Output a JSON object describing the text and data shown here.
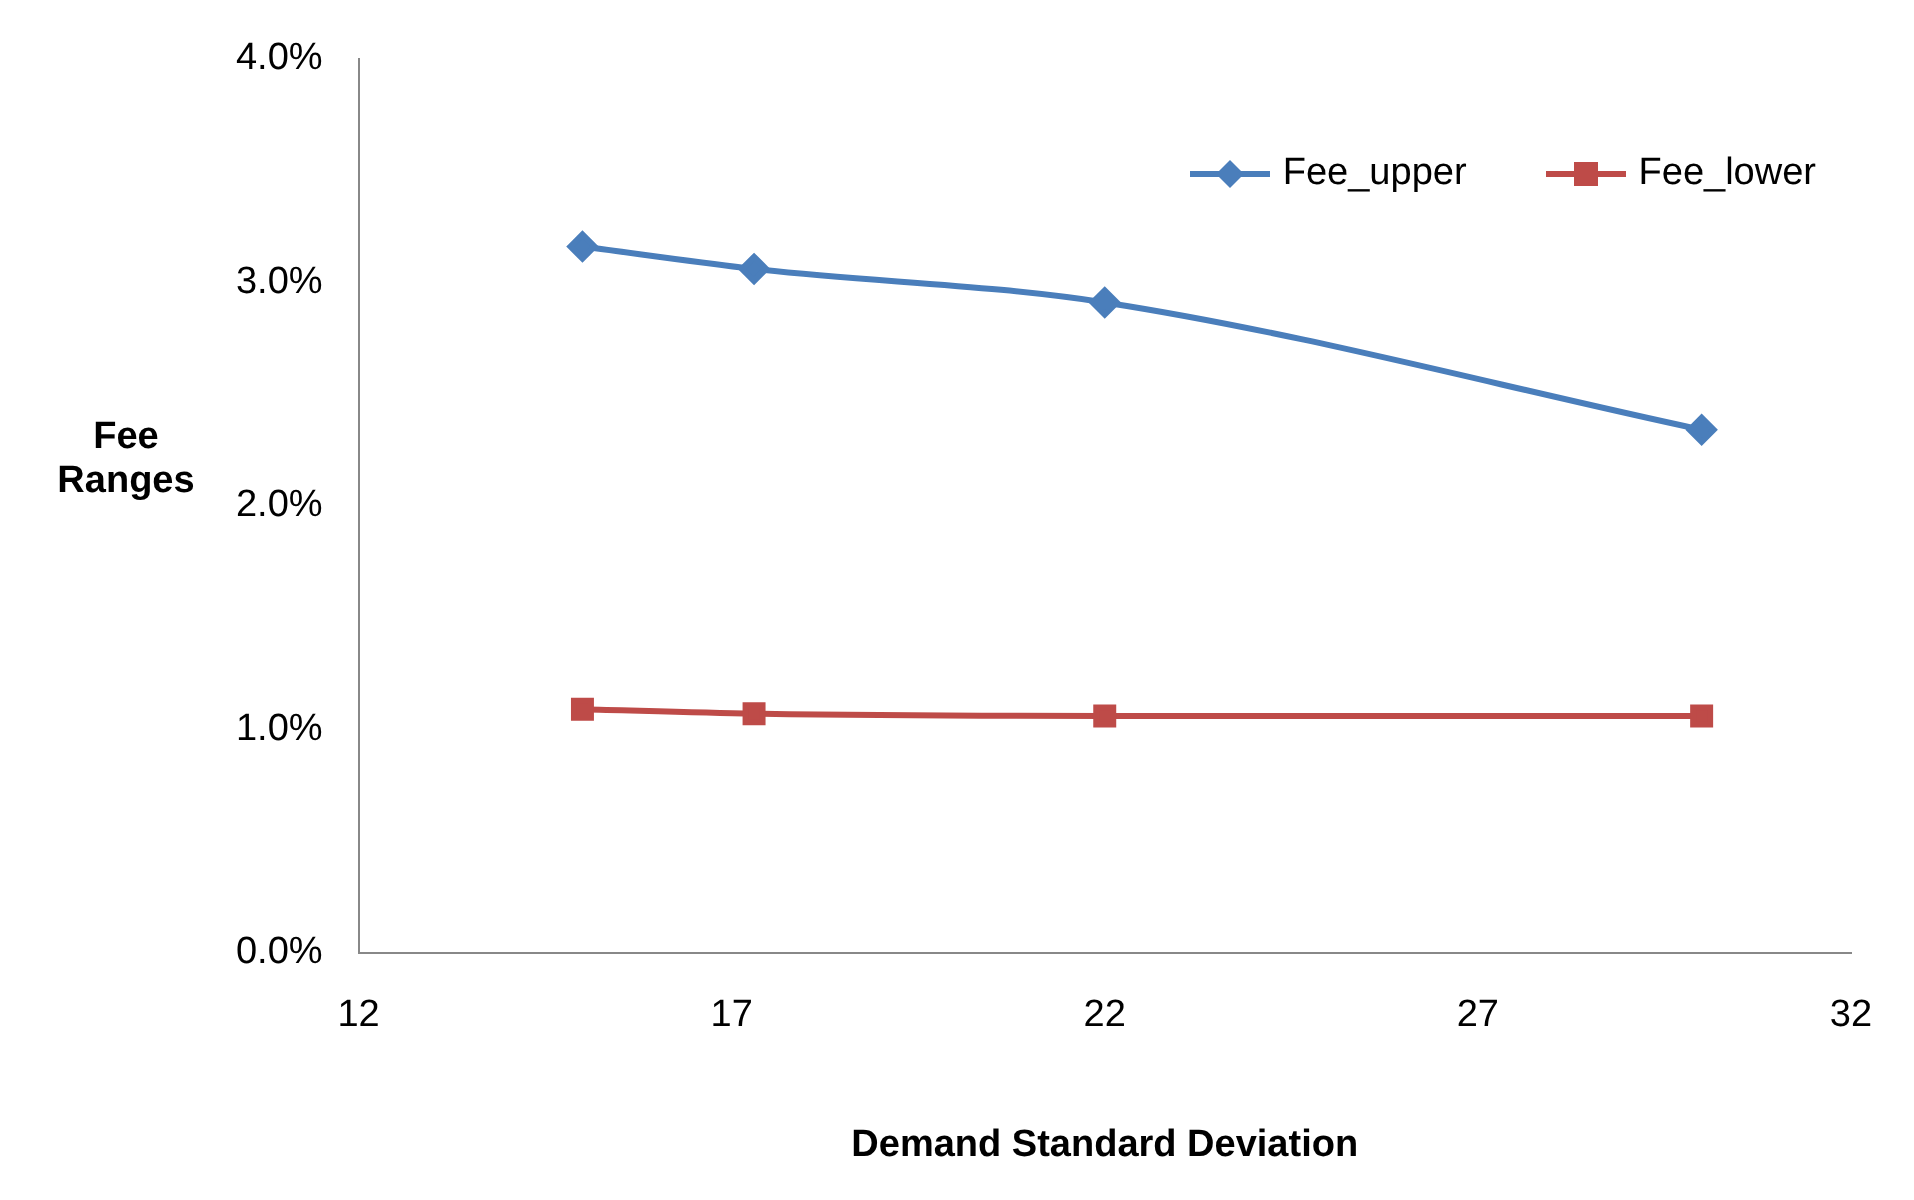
{
  "chart_data": {
    "type": "line",
    "xlabel": "Demand Standard Deviation",
    "ylabel": "Fee Ranges",
    "xlim": [
      12,
      32
    ],
    "xticks": [
      12,
      17,
      22,
      27,
      32
    ],
    "ylim": [
      0,
      0.04
    ],
    "yticks": [
      {
        "value": 0,
        "label": "0.0%"
      },
      {
        "value": 0.01,
        "label": "1.0%"
      },
      {
        "value": 0.02,
        "label": "2.0%"
      },
      {
        "value": 0.03,
        "label": "3.0%"
      },
      {
        "value": 0.04,
        "label": "4.0%"
      }
    ],
    "grid": false,
    "legend": "top right",
    "series": [
      {
        "name": "Fee_upper",
        "color": "#4a7ebb",
        "marker": "diamond",
        "x": [
          15,
          17.3,
          22,
          30
        ],
        "values": [
          0.0316,
          0.0306,
          0.0291,
          0.0234
        ]
      },
      {
        "name": "Fee_lower",
        "color": "#be4b48",
        "marker": "square",
        "x": [
          15,
          17.3,
          22,
          30
        ],
        "values": [
          0.0109,
          0.0107,
          0.0106,
          0.0106
        ]
      }
    ]
  }
}
